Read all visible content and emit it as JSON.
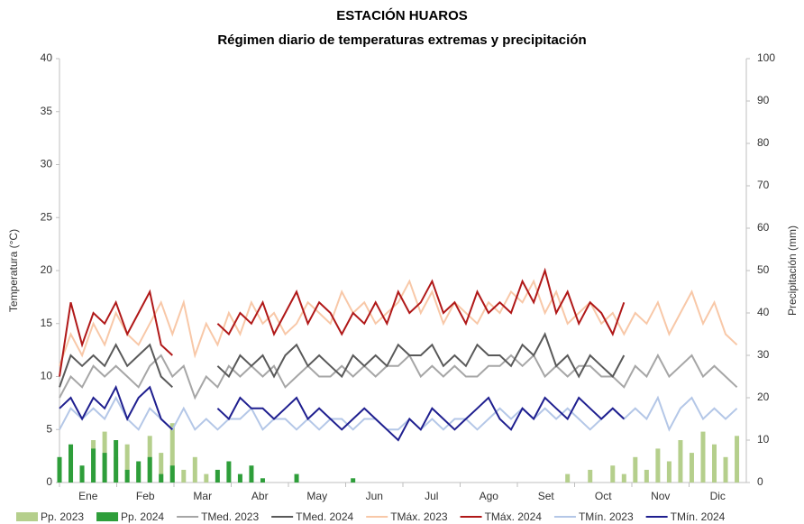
{
  "chart_data": {
    "type": "combo",
    "title": "ESTACIÓN HUAROS",
    "subtitle": "Régimen diario de temperaturas extremas y precipitación",
    "y_label": "Temperatura (°C)",
    "y2_label": "Precipitación (mm)",
    "categories": [
      "Ene",
      "Feb",
      "Mar",
      "Abr",
      "May",
      "Jun",
      "Jul",
      "Ago",
      "Set",
      "Oct",
      "Nov",
      "Dic"
    ],
    "xlim": [
      0,
      365
    ],
    "x": [
      0,
      6,
      12,
      18,
      24,
      30,
      36,
      42,
      48,
      54,
      60,
      66,
      72,
      78,
      84,
      90,
      96,
      102,
      108,
      114,
      120,
      126,
      132,
      138,
      144,
      150,
      156,
      162,
      168,
      174,
      180,
      186,
      192,
      198,
      204,
      210,
      216,
      222,
      228,
      234,
      240,
      246,
      252,
      258,
      264,
      270,
      276,
      282,
      288,
      294,
      300,
      306,
      312,
      318,
      324,
      330,
      336,
      342,
      348,
      354,
      360
    ],
    "ylim": [
      0,
      40
    ],
    "yticks": [
      0,
      5,
      10,
      15,
      20,
      25,
      30,
      35,
      40
    ],
    "y2lim": [
      0,
      100
    ],
    "y2ticks": [
      0,
      10,
      20,
      30,
      40,
      50,
      60,
      70,
      80,
      90,
      100
    ],
    "legend": "bottom",
    "series": [
      {
        "name": "Pp. 2023",
        "type": "bar",
        "axis": "y2",
        "color": "#b5cf8c",
        "values": [
          5,
          8,
          3,
          10,
          12,
          6,
          9,
          4,
          11,
          7,
          14,
          3,
          6,
          2,
          0,
          0,
          0,
          0,
          0,
          0,
          0,
          0,
          0,
          0,
          0,
          0,
          0,
          0,
          0,
          0,
          0,
          0,
          0,
          0,
          0,
          0,
          0,
          0,
          0,
          0,
          0,
          0,
          0,
          0,
          0,
          2,
          0,
          3,
          0,
          4,
          2,
          6,
          3,
          8,
          5,
          10,
          7,
          12,
          9,
          6,
          11
        ]
      },
      {
        "name": "Pp. 2024",
        "type": "bar",
        "axis": "y2",
        "color": "#2e9e3a",
        "values": [
          6,
          9,
          4,
          8,
          7,
          10,
          3,
          5,
          6,
          2,
          4,
          0,
          0,
          0,
          3,
          5,
          2,
          4,
          1,
          0,
          0,
          2,
          0,
          0,
          0,
          0,
          1,
          0,
          0,
          0,
          0,
          0,
          0,
          0,
          0,
          0,
          0,
          0,
          0,
          0,
          0,
          0,
          0,
          0,
          0,
          0,
          0,
          0,
          0,
          0,
          0,
          0,
          0,
          0,
          0,
          0,
          0,
          0,
          0,
          0,
          0
        ]
      },
      {
        "name": "TMed. 2023",
        "type": "line",
        "color": "#a6a6a6",
        "values": [
          8,
          10,
          9,
          11,
          10,
          11,
          10,
          9,
          11,
          12,
          10,
          11,
          8,
          10,
          9,
          11,
          10,
          11,
          10,
          11,
          9,
          10,
          11,
          10,
          10,
          11,
          10,
          11,
          10,
          11,
          11,
          12,
          10,
          11,
          10,
          11,
          10,
          10,
          11,
          11,
          12,
          11,
          12,
          10,
          11,
          10,
          11,
          11,
          10,
          10,
          9,
          11,
          10,
          12,
          10,
          11,
          12,
          10,
          11,
          10,
          9
        ]
      },
      {
        "name": "TMed. 2024",
        "type": "line",
        "color": "#595959",
        "values": [
          9,
          12,
          11,
          12,
          11,
          13,
          11,
          12,
          13,
          10,
          9,
          null,
          null,
          null,
          11,
          10,
          12,
          11,
          12,
          10,
          12,
          13,
          11,
          12,
          11,
          10,
          12,
          11,
          12,
          11,
          13,
          12,
          12,
          13,
          11,
          12,
          11,
          13,
          12,
          12,
          11,
          13,
          12,
          14,
          11,
          12,
          10,
          12,
          11,
          10,
          12,
          null,
          null,
          null,
          null,
          null,
          null,
          null,
          null,
          null,
          null
        ]
      },
      {
        "name": "TMáx. 2023",
        "type": "line",
        "color": "#f8c8a8",
        "values": [
          11,
          14,
          12,
          15,
          13,
          16,
          14,
          13,
          15,
          17,
          14,
          17,
          12,
          15,
          13,
          16,
          14,
          17,
          15,
          16,
          14,
          15,
          17,
          16,
          15,
          18,
          16,
          17,
          15,
          16,
          17,
          19,
          16,
          18,
          15,
          17,
          16,
          15,
          17,
          16,
          18,
          17,
          19,
          16,
          18,
          15,
          16,
          17,
          15,
          16,
          14,
          16,
          15,
          17,
          14,
          16,
          18,
          15,
          17,
          14,
          13
        ]
      },
      {
        "name": "TMáx. 2024",
        "type": "line",
        "color": "#b01818",
        "values": [
          10,
          17,
          13,
          16,
          15,
          17,
          14,
          16,
          18,
          13,
          12,
          null,
          null,
          null,
          15,
          14,
          16,
          15,
          17,
          14,
          16,
          18,
          15,
          17,
          16,
          14,
          16,
          15,
          17,
          15,
          18,
          16,
          17,
          19,
          16,
          17,
          15,
          18,
          16,
          17,
          16,
          19,
          17,
          20,
          16,
          18,
          15,
          17,
          16,
          14,
          17,
          null,
          null,
          null,
          null,
          null,
          null,
          null,
          null,
          null,
          null
        ]
      },
      {
        "name": "TMín. 2023",
        "type": "line",
        "color": "#b4c7e7",
        "values": [
          5,
          7,
          6,
          7,
          6,
          8,
          6,
          5,
          7,
          6,
          5,
          7,
          5,
          6,
          5,
          6,
          6,
          7,
          5,
          6,
          6,
          5,
          6,
          5,
          6,
          6,
          5,
          6,
          6,
          5,
          5,
          6,
          5,
          6,
          5,
          6,
          6,
          5,
          6,
          7,
          6,
          7,
          6,
          7,
          6,
          7,
          6,
          5,
          6,
          7,
          6,
          7,
          6,
          8,
          5,
          7,
          8,
          6,
          7,
          6,
          7
        ]
      },
      {
        "name": "TMín. 2024",
        "type": "line",
        "color": "#1f1f8f",
        "values": [
          7,
          8,
          6,
          8,
          7,
          9,
          6,
          8,
          9,
          6,
          5,
          null,
          null,
          null,
          7,
          6,
          8,
          7,
          7,
          6,
          7,
          8,
          6,
          7,
          6,
          5,
          6,
          7,
          6,
          5,
          4,
          6,
          5,
          7,
          6,
          5,
          6,
          7,
          8,
          6,
          5,
          7,
          6,
          8,
          7,
          6,
          8,
          7,
          6,
          7,
          6,
          null,
          null,
          null,
          null,
          null,
          null,
          null,
          null,
          null,
          null
        ]
      }
    ]
  }
}
